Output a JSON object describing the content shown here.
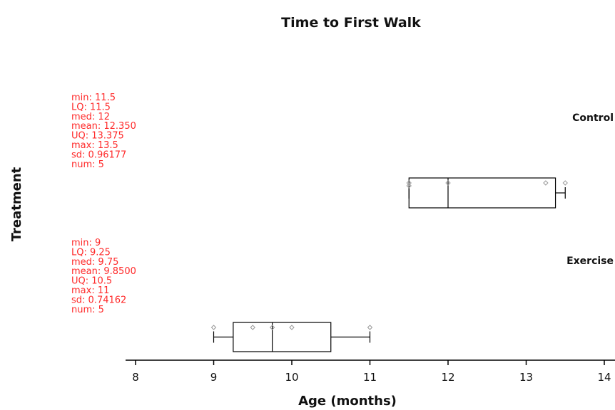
{
  "chart_data": {
    "type": "boxplot",
    "title": "Time to First Walk",
    "xlabel": "Age (months)",
    "ylabel": "Treatment",
    "xlim": [
      7.85,
      14.1
    ],
    "xticks": [
      8,
      9,
      10,
      11,
      12,
      13,
      14
    ],
    "tick_labels": [
      "8",
      "9",
      "10",
      "11",
      "12",
      "13",
      "14"
    ],
    "orientation": "horizontal",
    "colors": {
      "stats_text": "#ff2a2a",
      "box": "#000000",
      "points": "#999999"
    },
    "groups": [
      {
        "name": "Control",
        "points": [
          11.5,
          11.5,
          12,
          13.25,
          13.5
        ],
        "min": 11.5,
        "lq": 11.5,
        "med": 12,
        "uq": 13.375,
        "max": 13.5,
        "stats_text": [
          "min:  11.5",
          "LQ:   11.5",
          "med:  12",
          "mean:  12.350",
          "UQ:  13.375",
          "max:  13.5",
          "sd:  0.96177",
          "num:  5"
        ]
      },
      {
        "name": "Exercise",
        "points": [
          9,
          9.5,
          9.75,
          10,
          11
        ],
        "min": 9,
        "lq": 9.25,
        "med": 9.75,
        "uq": 10.5,
        "max": 11,
        "stats_text": [
          "min:  9",
          "LQ:   9.25",
          "med:  9.75",
          "mean:  9.8500",
          "UQ:  10.5",
          "max:  11",
          "sd:  0.74162",
          "num:  5"
        ]
      }
    ]
  }
}
